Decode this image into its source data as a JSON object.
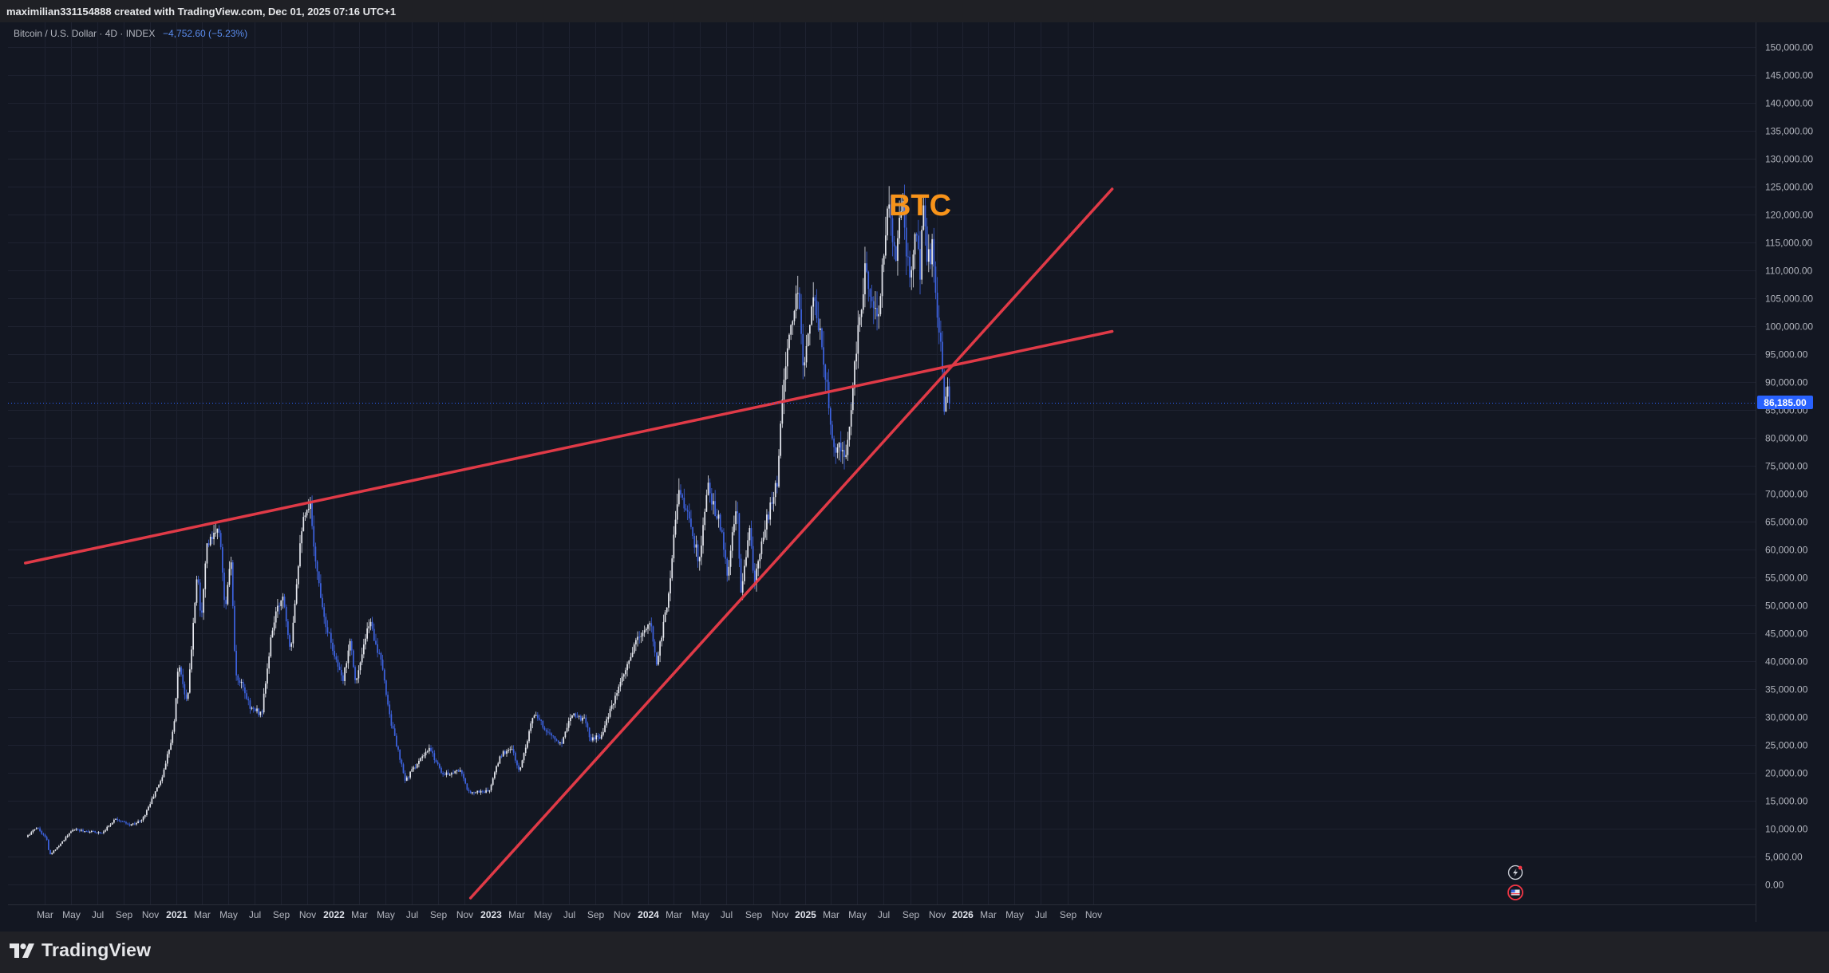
{
  "header": {
    "attribution": "maximilian331154888 created with TradingView.com, Dec 01, 2025 07:16 UTC+1"
  },
  "legend": {
    "symbol": "Bitcoin / U.S. Dollar · 4D · INDEX",
    "change": "−4,752.60 (−5.23%)"
  },
  "annotation": {
    "text": "BTC",
    "color": "#f7931a"
  },
  "price_label": "86,185.00",
  "footer": {
    "brand": "TradingView"
  },
  "colors": {
    "background": "#131722",
    "grid": "#1e2230",
    "trendline": "#e03a47",
    "candle_up": "#e6e8ef",
    "candle_down": "#3d63e0",
    "price_tag": "#2962ff"
  },
  "chart_data": {
    "type": "candlestick",
    "instrument": "Bitcoin / U.S. Dollar",
    "interval": "4D",
    "ylim": [
      -2000,
      153000
    ],
    "y_ticks": [
      0,
      5000,
      10000,
      15000,
      20000,
      25000,
      30000,
      35000,
      40000,
      45000,
      50000,
      55000,
      60000,
      65000,
      70000,
      75000,
      80000,
      85000,
      90000,
      95000,
      100000,
      105000,
      110000,
      115000,
      120000,
      125000,
      130000,
      135000,
      140000,
      145000,
      150000
    ],
    "y_tick_labels": [
      "0.00",
      "5,000.00",
      "10,000.00",
      "15,000.00",
      "20,000.00",
      "25,000.00",
      "30,000.00",
      "35,000.00",
      "40,000.00",
      "45,000.00",
      "50,000.00",
      "55,000.00",
      "60,000.00",
      "65,000.00",
      "70,000.00",
      "75,000.00",
      "80,000.00",
      "85,000.00",
      "90,000.00",
      "95,000.00",
      "100,000.00",
      "105,000.00",
      "110,000.00",
      "115,000.00",
      "120,000.00",
      "125,000.00",
      "130,000.00",
      "135,000.00",
      "140,000.00",
      "145,000.00",
      "150,000.00"
    ],
    "x_ticks": [
      {
        "label": "Mar",
        "date": "2020-03-01",
        "bold": false
      },
      {
        "label": "May",
        "date": "2020-05-01",
        "bold": false
      },
      {
        "label": "Jul",
        "date": "2020-07-01",
        "bold": false
      },
      {
        "label": "Sep",
        "date": "2020-09-01",
        "bold": false
      },
      {
        "label": "Nov",
        "date": "2020-11-01",
        "bold": false
      },
      {
        "label": "2021",
        "date": "2021-01-01",
        "bold": true
      },
      {
        "label": "Mar",
        "date": "2021-03-01",
        "bold": false
      },
      {
        "label": "May",
        "date": "2021-05-01",
        "bold": false
      },
      {
        "label": "Jul",
        "date": "2021-07-01",
        "bold": false
      },
      {
        "label": "Sep",
        "date": "2021-09-01",
        "bold": false
      },
      {
        "label": "Nov",
        "date": "2021-11-01",
        "bold": false
      },
      {
        "label": "2022",
        "date": "2022-01-01",
        "bold": true
      },
      {
        "label": "Mar",
        "date": "2022-03-01",
        "bold": false
      },
      {
        "label": "May",
        "date": "2022-05-01",
        "bold": false
      },
      {
        "label": "Jul",
        "date": "2022-07-01",
        "bold": false
      },
      {
        "label": "Sep",
        "date": "2022-09-01",
        "bold": false
      },
      {
        "label": "Nov",
        "date": "2022-11-01",
        "bold": false
      },
      {
        "label": "2023",
        "date": "2023-01-01",
        "bold": true
      },
      {
        "label": "Mar",
        "date": "2023-03-01",
        "bold": false
      },
      {
        "label": "May",
        "date": "2023-05-01",
        "bold": false
      },
      {
        "label": "Jul",
        "date": "2023-07-01",
        "bold": false
      },
      {
        "label": "Sep",
        "date": "2023-09-01",
        "bold": false
      },
      {
        "label": "Nov",
        "date": "2023-11-01",
        "bold": false
      },
      {
        "label": "2024",
        "date": "2024-01-01",
        "bold": true
      },
      {
        "label": "Mar",
        "date": "2024-03-01",
        "bold": false
      },
      {
        "label": "May",
        "date": "2024-05-01",
        "bold": false
      },
      {
        "label": "Jul",
        "date": "2024-07-01",
        "bold": false
      },
      {
        "label": "Sep",
        "date": "2024-09-01",
        "bold": false
      },
      {
        "label": "Nov",
        "date": "2024-11-01",
        "bold": false
      },
      {
        "label": "2025",
        "date": "2025-01-01",
        "bold": true
      },
      {
        "label": "Mar",
        "date": "2025-03-01",
        "bold": false
      },
      {
        "label": "May",
        "date": "2025-05-01",
        "bold": false
      },
      {
        "label": "Jul",
        "date": "2025-07-01",
        "bold": false
      },
      {
        "label": "Sep",
        "date": "2025-09-01",
        "bold": false
      },
      {
        "label": "Nov",
        "date": "2025-11-01",
        "bold": false
      },
      {
        "label": "2026",
        "date": "2026-01-01",
        "bold": true
      },
      {
        "label": "Mar",
        "date": "2026-03-01",
        "bold": false
      },
      {
        "label": "May",
        "date": "2026-05-01",
        "bold": false
      },
      {
        "label": "Jul",
        "date": "2026-07-01",
        "bold": false
      },
      {
        "label": "Sep",
        "date": "2026-09-01",
        "bold": false
      },
      {
        "label": "Nov",
        "date": "2026-11-01",
        "bold": false
      }
    ],
    "price_path": [
      [
        "2020-01-20",
        8400
      ],
      [
        "2020-02-14",
        10200
      ],
      [
        "2020-03-08",
        8000
      ],
      [
        "2020-03-14",
        5100
      ],
      [
        "2020-04-01",
        6600
      ],
      [
        "2020-05-08",
        9800
      ],
      [
        "2020-06-15",
        9400
      ],
      [
        "2020-07-15",
        9200
      ],
      [
        "2020-08-15",
        11800
      ],
      [
        "2020-09-15",
        10500
      ],
      [
        "2020-10-15",
        11400
      ],
      [
        "2020-11-08",
        15300
      ],
      [
        "2020-12-01",
        19200
      ],
      [
        "2020-12-28",
        28000
      ],
      [
        "2021-01-08",
        40000
      ],
      [
        "2021-01-28",
        32000
      ],
      [
        "2021-02-21",
        57000
      ],
      [
        "2021-03-01",
        47000
      ],
      [
        "2021-03-13",
        60500
      ],
      [
        "2021-04-14",
        63500
      ],
      [
        "2021-04-25",
        49000
      ],
      [
        "2021-05-10",
        58000
      ],
      [
        "2021-05-20",
        37000
      ],
      [
        "2021-06-01",
        36000
      ],
      [
        "2021-06-25",
        31500
      ],
      [
        "2021-07-20",
        30500
      ],
      [
        "2021-08-15",
        46500
      ],
      [
        "2021-09-07",
        52000
      ],
      [
        "2021-09-25",
        42000
      ],
      [
        "2021-10-20",
        64000
      ],
      [
        "2021-11-10",
        67500
      ],
      [
        "2021-11-25",
        56000
      ],
      [
        "2021-12-15",
        47000
      ],
      [
        "2022-01-24",
        36000
      ],
      [
        "2022-02-10",
        44000
      ],
      [
        "2022-02-24",
        36000
      ],
      [
        "2022-03-28",
        47300
      ],
      [
        "2022-04-25",
        39000
      ],
      [
        "2022-05-15",
        29500
      ],
      [
        "2022-06-18",
        18500
      ],
      [
        "2022-07-10",
        21000
      ],
      [
        "2022-08-14",
        24200
      ],
      [
        "2022-09-15",
        19500
      ],
      [
        "2022-10-25",
        20500
      ],
      [
        "2022-11-10",
        16500
      ],
      [
        "2022-12-30",
        16600
      ],
      [
        "2023-01-25",
        23000
      ],
      [
        "2023-02-20",
        24500
      ],
      [
        "2023-03-10",
        20000
      ],
      [
        "2023-04-12",
        30500
      ],
      [
        "2023-05-20",
        26800
      ],
      [
        "2023-06-15",
        25000
      ],
      [
        "2023-07-10",
        30800
      ],
      [
        "2023-08-15",
        29000
      ],
      [
        "2023-08-20",
        26000
      ],
      [
        "2023-09-15",
        26500
      ],
      [
        "2023-10-25",
        34500
      ],
      [
        "2023-12-10",
        44000
      ],
      [
        "2024-01-10",
        46500
      ],
      [
        "2024-01-23",
        39500
      ],
      [
        "2024-02-20",
        52000
      ],
      [
        "2024-03-14",
        71500
      ],
      [
        "2024-04-15",
        63000
      ],
      [
        "2024-05-01",
        57500
      ],
      [
        "2024-05-21",
        71000
      ],
      [
        "2024-06-20",
        64000
      ],
      [
        "2024-07-05",
        55000
      ],
      [
        "2024-07-28",
        68500
      ],
      [
        "2024-08-05",
        51000
      ],
      [
        "2024-08-25",
        64000
      ],
      [
        "2024-09-06",
        53500
      ],
      [
        "2024-10-01",
        64000
      ],
      [
        "2024-10-29",
        72000
      ],
      [
        "2024-11-13",
        91000
      ],
      [
        "2024-12-05",
        101000
      ],
      [
        "2024-12-17",
        106500
      ],
      [
        "2024-12-30",
        92000
      ],
      [
        "2025-01-20",
        106000
      ],
      [
        "2025-02-10",
        96000
      ],
      [
        "2025-03-01",
        84000
      ],
      [
        "2025-03-10",
        79000
      ],
      [
        "2025-04-07",
        76000
      ],
      [
        "2025-04-30",
        95000
      ],
      [
        "2025-05-22",
        110000
      ],
      [
        "2025-06-20",
        101000
      ],
      [
        "2025-07-14",
        121000
      ],
      [
        "2025-08-02",
        113000
      ],
      [
        "2025-08-14",
        123000
      ],
      [
        "2025-09-02",
        108000
      ],
      [
        "2025-09-18",
        117500
      ],
      [
        "2025-09-26",
        109000
      ],
      [
        "2025-10-06",
        124500
      ],
      [
        "2025-10-10",
        111000
      ],
      [
        "2025-10-26",
        114000
      ],
      [
        "2025-11-04",
        101000
      ],
      [
        "2025-11-13",
        97000
      ],
      [
        "2025-11-21",
        84000
      ],
      [
        "2025-11-28",
        91500
      ],
      [
        "2025-12-01",
        86185
      ]
    ],
    "trendlines": [
      {
        "name": "resistance",
        "from": [
          "2020-01-16",
          57500
        ],
        "to": [
          "2026-12-14",
          99000
        ]
      },
      {
        "name": "support",
        "from": [
          "2022-11-15",
          -2500
        ],
        "to": [
          "2026-12-14",
          124500
        ]
      }
    ],
    "last_price": 86185
  }
}
